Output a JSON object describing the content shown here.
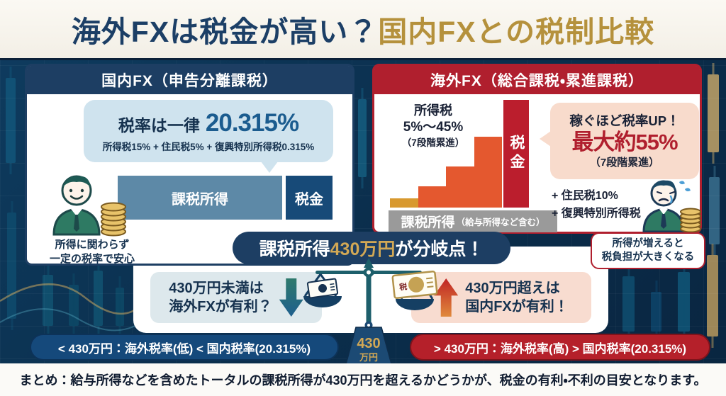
{
  "header": {
    "title_left": "海外FXは税金が高い？",
    "title_right": "国内FXとの税制比較"
  },
  "domestic_panel": {
    "header": "国内FX（申告分離課税）",
    "bubble": {
      "rate_label": "税率は一律",
      "rate_value": "20.315%",
      "breakdown": "所得税15% + 住民税5% + 復興特別所得税0.315%"
    },
    "bar_income_label": "課税所得",
    "bar_tax_label": "税金",
    "caption_line1": "所得に関わらず",
    "caption_line2": "一定の税率で安心"
  },
  "overseas_panel": {
    "header": "海外FX（総合課税・累進課税）",
    "income_tax_line1": "所得税",
    "income_tax_line2": "5%〜45%",
    "income_tax_line3": "（7段階累進）",
    "staircase_steps": [
      13,
      30,
      58,
      100
    ],
    "tax_bar_label": "税金",
    "base_bar_label": "課税所得",
    "base_bar_note": "（給与所得など含む）",
    "bubble": {
      "line1": "稼ぐほど税率UP！",
      "line2": "最大約55%",
      "line3": "（7段階累進）"
    },
    "extra_line1": "+ 住民税10%",
    "extra_line2": "+ 復興特別所得税",
    "caption_line1": "所得が増えると",
    "caption_line2": "税負担が大きくなる"
  },
  "middle": {
    "banner_pre": "課税所得",
    "banner_amount": "430万円",
    "banner_post": "が分岐点！",
    "left_bubble_line1": "430万円未満は",
    "left_bubble_line2": "海外FXが有利？",
    "right_bubble_line1": "430万円超えは",
    "right_bubble_line2": "国内FXが有利！",
    "weight_line1": "430",
    "weight_line2": "万円",
    "banknote_label": "税"
  },
  "footer": {
    "left_pill": "< 430万円：海外税率(低) < 国内税率(20.315%)",
    "right_pill": "> 430万円：海外税率(高) > 国内税率(20.315%)",
    "summary": "まとめ：給与所得などを含めたトータルの課税所得が430万円を超えるかどうかが、税金の有利・不利の目安となります。"
  },
  "colors": {
    "navy": "#1d3e63",
    "red": "#b01f2e",
    "gold": "#b5913c",
    "steel_blue": "#5d89a7",
    "dark_blue_bar": "#174a78",
    "orange_step": "#e4582f",
    "amber_step": "#d8992f",
    "bubble_blue": "#cfe3ee",
    "bubble_pink": "#f8dbcc"
  }
}
